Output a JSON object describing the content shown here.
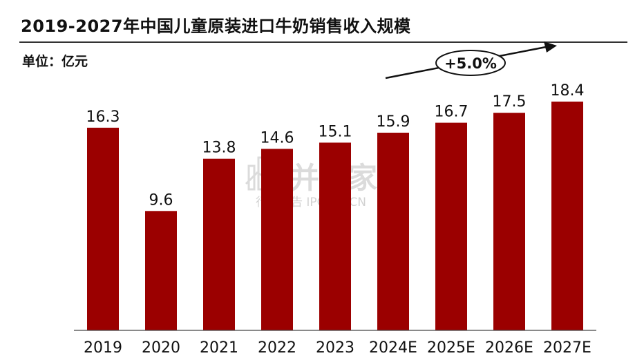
{
  "header": {
    "title": "2019-2027年中国儿童原装进口牛奶销售收入规模",
    "unit": "单位：亿元"
  },
  "annotation": {
    "cagr_label": "+5.0%"
  },
  "watermark": {
    "brand": "并购家",
    "sub": "行业报告 IPOIPO.CN"
  },
  "colors": {
    "bar": "#9b0000",
    "axis": "#444444"
  },
  "chart_data": {
    "type": "bar",
    "title": "2019-2027年中国儿童原装进口牛奶销售收入规模",
    "xlabel": "",
    "ylabel": "",
    "unit": "亿元",
    "categories": [
      "2019",
      "2020",
      "2021",
      "2022",
      "2023",
      "2024E",
      "2025E",
      "2026E",
      "2027E"
    ],
    "values": [
      16.3,
      9.6,
      13.8,
      14.6,
      15.1,
      15.9,
      16.7,
      17.5,
      18.4
    ],
    "value_labels": [
      "16.3",
      "9.6",
      "13.8",
      "14.6",
      "15.1",
      "15.9",
      "16.7",
      "17.5",
      "18.4"
    ],
    "ylim": [
      0,
      18.4
    ],
    "grid": false,
    "legend": "none"
  }
}
